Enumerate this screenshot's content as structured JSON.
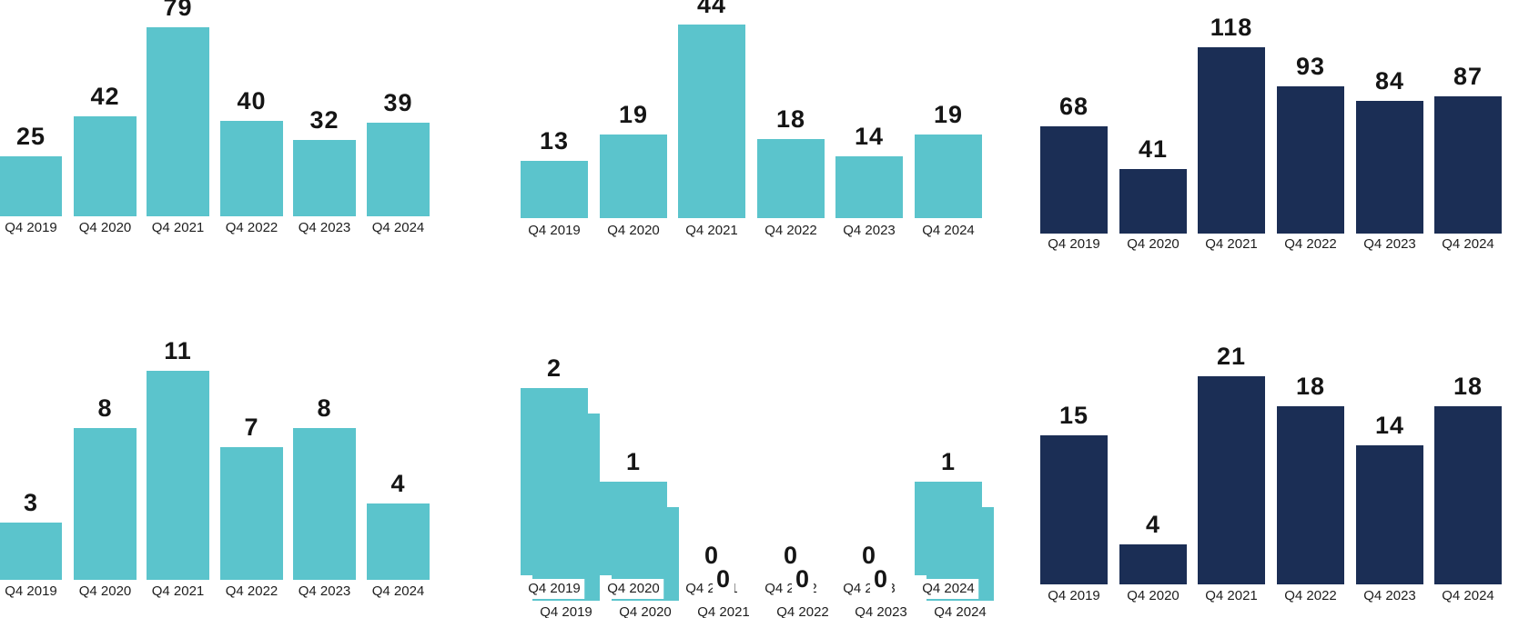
{
  "colors": {
    "teal": "#5BC4CC",
    "navy": "#1B2E55",
    "value_label": "#151515",
    "category_label": "#1D1D1D",
    "background": "#FFFFFF"
  },
  "chart_data": [
    {
      "id": "top-left",
      "type": "bar",
      "series_color": "teal",
      "categories": [
        "Q4 2019",
        "Q4 2020",
        "Q4 2021",
        "Q4 2022",
        "Q4 2023",
        "Q4 2024"
      ],
      "values": [
        25,
        42,
        79,
        40,
        32,
        39
      ],
      "value_labels_shown": true,
      "grid": false,
      "legend": "none"
    },
    {
      "id": "top-middle",
      "type": "bar",
      "series_color": "teal",
      "categories": [
        "Q4 2019",
        "Q4 2020",
        "Q4 2021",
        "Q4 2022",
        "Q4 2023",
        "Q4 2024"
      ],
      "values": [
        13,
        19,
        44,
        18,
        14,
        19
      ],
      "value_labels_shown": true,
      "grid": false,
      "legend": "none"
    },
    {
      "id": "top-right",
      "type": "bar",
      "series_color": "navy",
      "categories": [
        "Q4 2019",
        "Q4 2020",
        "Q4 2021",
        "Q4 2022",
        "Q4 2023",
        "Q4 2024"
      ],
      "values": [
        68,
        41,
        118,
        93,
        84,
        87
      ],
      "value_labels_shown": true,
      "grid": false,
      "legend": "none"
    },
    {
      "id": "bottom-left",
      "type": "bar",
      "series_color": "teal",
      "categories": [
        "Q4 2019",
        "Q4 2020",
        "Q4 2021",
        "Q4 2022",
        "Q4 2023",
        "Q4 2024"
      ],
      "values": [
        3,
        8,
        11,
        7,
        8,
        4
      ],
      "value_labels_shown": true,
      "grid": false,
      "legend": "none"
    },
    {
      "id": "bottom-middle",
      "type": "bar",
      "series_color": "teal",
      "categories": [
        "Q4 2019",
        "Q4 2020",
        "Q4 2021",
        "Q4 2022",
        "Q4 2023",
        "Q4 2024"
      ],
      "values": [
        2,
        1,
        0,
        0,
        0,
        1
      ],
      "value_labels_shown": true,
      "grid": false,
      "legend": "none",
      "ghost_duplicate": {
        "visual_note": "same chart rendered a second time, offset down-right; its 0 labels and axis labels show through",
        "categories": [
          "Q4 2019",
          "Q4 2020",
          "Q4 2021",
          "Q4 2022",
          "Q4 2023",
          "Q4 2024"
        ],
        "values": [
          2,
          1,
          0,
          0,
          0,
          1
        ]
      }
    },
    {
      "id": "bottom-right",
      "type": "bar",
      "series_color": "navy",
      "categories": [
        "Q4 2019",
        "Q4 2020",
        "Q4 2021",
        "Q4 2022",
        "Q4 2023",
        "Q4 2024"
      ],
      "values": [
        15,
        4,
        21,
        18,
        14,
        18
      ],
      "value_labels_shown": true,
      "grid": false,
      "legend": "none"
    }
  ]
}
